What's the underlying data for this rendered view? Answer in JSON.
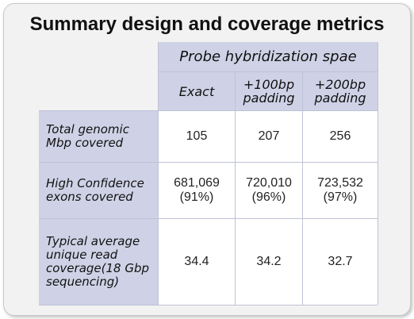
{
  "title": "Summary design and coverage metrics",
  "table": {
    "group_header": "Probe hybridization spae",
    "columns": [
      "Exact",
      "+100bp\npadding",
      "+200bp\npadding"
    ],
    "rows": [
      {
        "label": "Total genomic\nMbp covered",
        "values": [
          "105",
          "207",
          "256"
        ]
      },
      {
        "label": "High Confidence\nexons covered",
        "values": [
          "681,069\n(91%)",
          "720,010\n(96%)",
          "723,532\n(97%)"
        ]
      },
      {
        "label": "Typical average\nunique read\ncoverage(18 Gbp\nsequencing)",
        "values": [
          "34.4",
          "34.2",
          "32.7"
        ]
      }
    ]
  },
  "colors": {
    "header_bg": "#cfd2e6",
    "card_bg": "#f2f2f2",
    "grid_line": "#bfc2d6"
  }
}
